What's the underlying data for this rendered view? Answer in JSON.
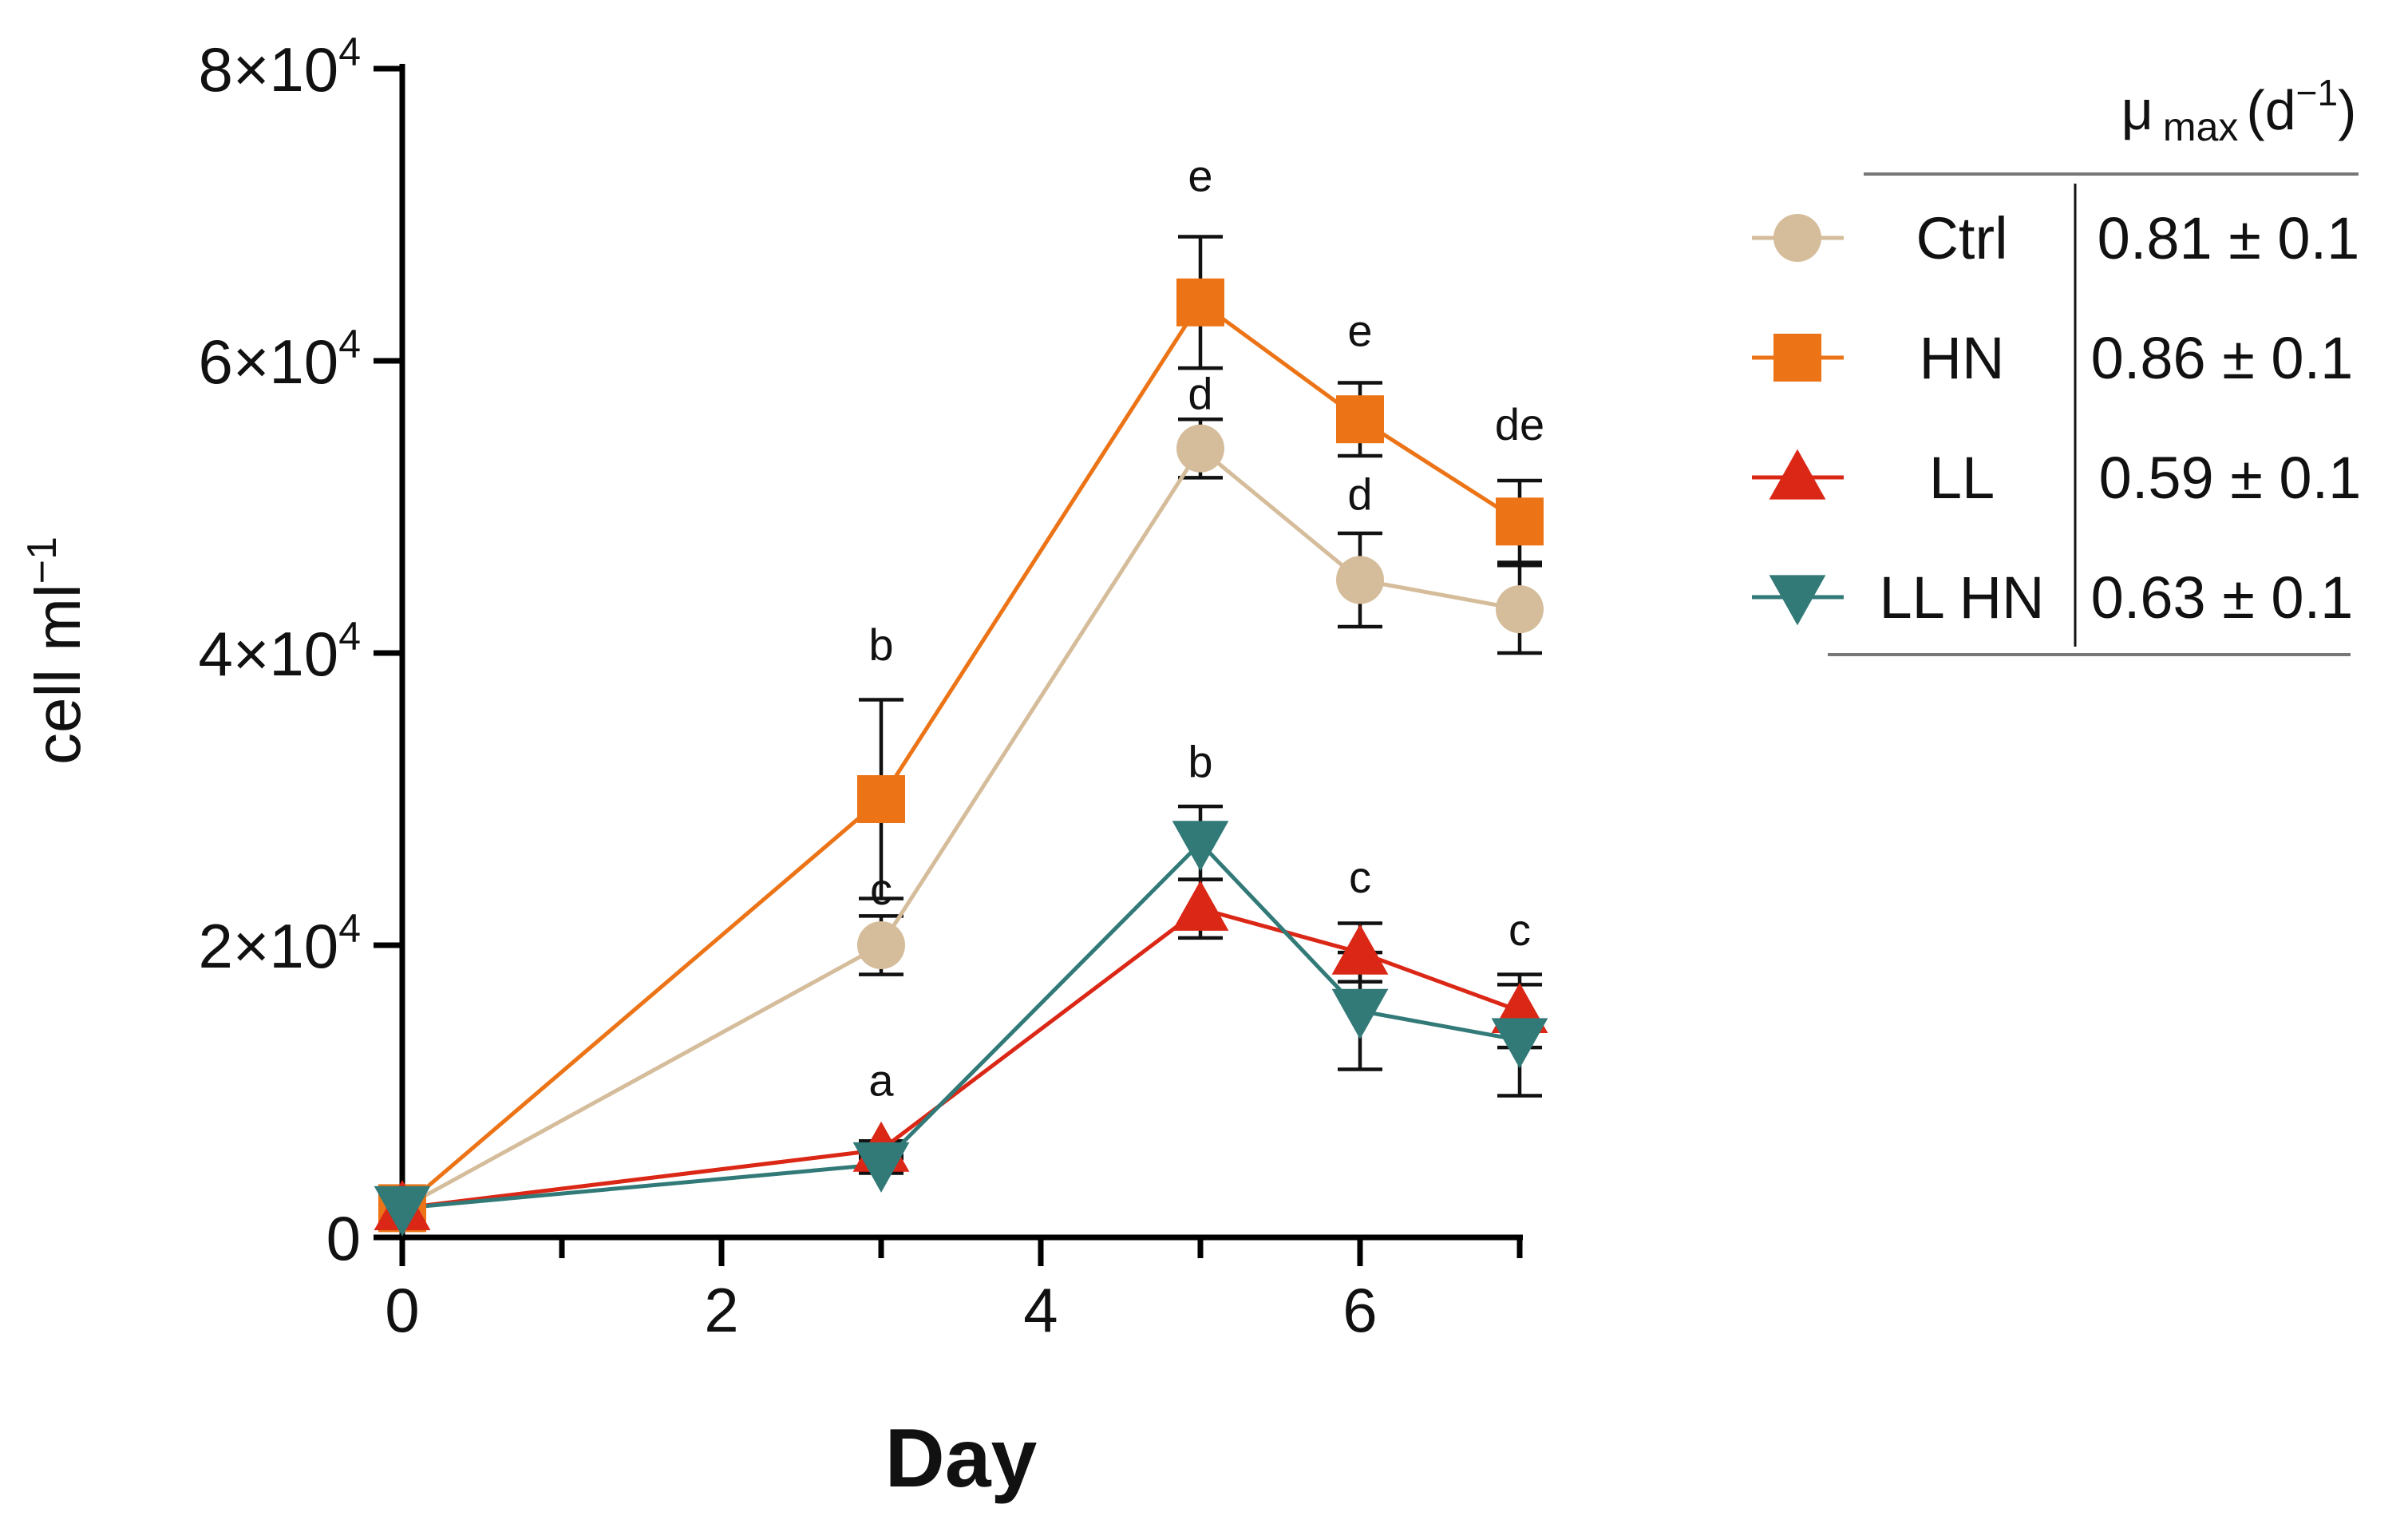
{
  "chart_data": {
    "type": "line",
    "xlabel": "Day",
    "ylabel": "cell ml",
    "ylabel_superscript": "−1",
    "xlim": [
      0,
      7
    ],
    "ylim": [
      0,
      80000
    ],
    "x_ticks": [
      0,
      2,
      4,
      6
    ],
    "x_tick_labels": [
      "0",
      "2",
      "4",
      "6"
    ],
    "x_minor_ticks": [
      1,
      3,
      5,
      7
    ],
    "y_ticks": [
      0,
      20000,
      40000,
      60000,
      80000
    ],
    "y_tick_labels": [
      {
        "text": "0",
        "exp": ""
      },
      {
        "text": "2×10",
        "exp": "4"
      },
      {
        "text": "4×10",
        "exp": "4"
      },
      {
        "text": "6×10",
        "exp": "4"
      },
      {
        "text": "8×10",
        "exp": "4"
      }
    ],
    "grid": false,
    "series": [
      {
        "name": "Ctrl",
        "color": "#D5BC9A",
        "marker": "circle",
        "x": [
          0,
          3,
          5,
          6,
          7
        ],
        "y": [
          2000,
          20000,
          54000,
          45000,
          43000
        ],
        "err": [
          0,
          2000,
          2000,
          3200,
          3000
        ]
      },
      {
        "name": "HN",
        "color": "#EC7417",
        "marker": "square",
        "x": [
          0,
          3,
          5,
          6,
          7
        ],
        "y": [
          2000,
          30000,
          64000,
          56000,
          49000
        ],
        "err": [
          0,
          6800,
          4500,
          2500,
          2800
        ]
      },
      {
        "name": "LL",
        "color": "#DB2716",
        "marker": "triangle-up",
        "x": [
          0,
          3,
          5,
          6,
          7
        ],
        "y": [
          2000,
          6000,
          22500,
          19500,
          15500
        ],
        "err": [
          0,
          600,
          2000,
          2000,
          2500
        ]
      },
      {
        "name": "LL HN",
        "color": "#327A78",
        "marker": "triangle-down",
        "x": [
          0,
          3,
          5,
          6,
          7
        ],
        "y": [
          2000,
          5000,
          27000,
          15500,
          13500
        ],
        "err": [
          0,
          600,
          2500,
          4000,
          3800
        ]
      }
    ],
    "annotations": [
      {
        "text": "b",
        "x": 3,
        "y": 39500
      },
      {
        "text": "c",
        "x": 3,
        "y": 22800
      },
      {
        "text": "a",
        "x": 3,
        "y": 9700
      },
      {
        "text": "e",
        "x": 5,
        "y": 71600
      },
      {
        "text": "d",
        "x": 5,
        "y": 56700
      },
      {
        "text": "b",
        "x": 5,
        "y": 31500
      },
      {
        "text": "e",
        "x": 6,
        "y": 61000
      },
      {
        "text": "d",
        "x": 6,
        "y": 49800
      },
      {
        "text": "c",
        "x": 6,
        "y": 23600
      },
      {
        "text": "de",
        "x": 7,
        "y": 54600
      },
      {
        "text": "c",
        "x": 7,
        "y": 20000
      }
    ],
    "legend": {
      "position": "top-right",
      "header_symbol": "μ",
      "header_sub": "max",
      "header_unit_open": "(d",
      "header_unit_exp": "−1",
      "header_unit_close": ")",
      "rows": [
        {
          "label": "Ctrl",
          "value": "0.81 ± 0.1"
        },
        {
          "label": "HN",
          "value": "0.86 ± 0.1"
        },
        {
          "label": "LL",
          "value": "0.59 ± 0.1"
        },
        {
          "label": "LL HN",
          "value": "0.63 ± 0.1"
        }
      ]
    }
  }
}
